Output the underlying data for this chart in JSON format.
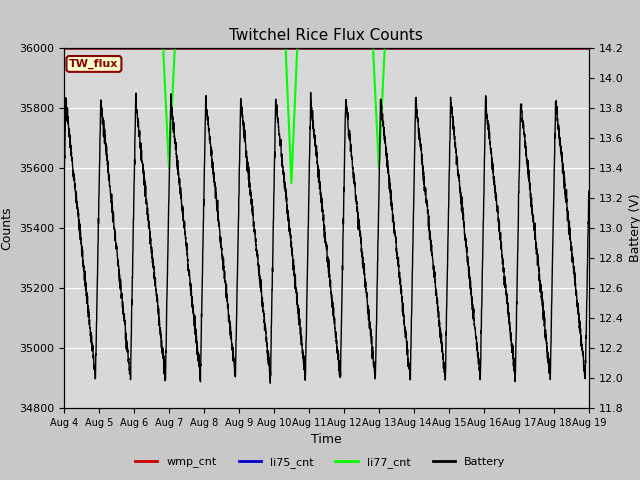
{
  "title": "Twitchel Rice Flux Counts",
  "xlabel": "Time",
  "ylabel_left": "Counts",
  "ylabel_right": "Battery (V)",
  "ylim_left": [
    34800,
    36000
  ],
  "ylim_right": [
    11.8,
    14.2
  ],
  "x_tick_labels": [
    "Aug 4",
    "Aug 5",
    "Aug 6",
    "Aug 7",
    "Aug 8",
    "Aug 9",
    "Aug 10",
    "Aug 11",
    "Aug 12",
    "Aug 13",
    "Aug 14",
    "Aug 15",
    "Aug 16",
    "Aug 17",
    "Aug 18",
    "Aug 19"
  ],
  "fig_bg_color": "#c8c8c8",
  "plot_bg_color": "#d8d8d8",
  "tw_flux_box_color": "#ffffcc",
  "tw_flux_border_color": "#8b0000",
  "tw_flux_text_color": "#8b0000",
  "li77_color": "#00ff00",
  "li75_color": "#0000cc",
  "wmp_color": "#cc0000",
  "battery_color": "#000000",
  "legend_items": [
    "wmp_cnt",
    "li75_cnt",
    "li77_cnt",
    "Battery"
  ],
  "legend_colors": [
    "#cc0000",
    "#0000cc",
    "#00ff00",
    "#000000"
  ],
  "yticks_left": [
    34800,
    35000,
    35200,
    35400,
    35600,
    35800,
    36000
  ],
  "yticks_right": [
    11.8,
    12.0,
    12.2,
    12.4,
    12.6,
    12.8,
    13.0,
    13.2,
    13.4,
    13.6,
    13.8,
    14.0,
    14.2
  ],
  "battery_cycle_hours": 24,
  "battery_high_volt": 13.85,
  "battery_low_volt": 12.0,
  "num_days": 15
}
